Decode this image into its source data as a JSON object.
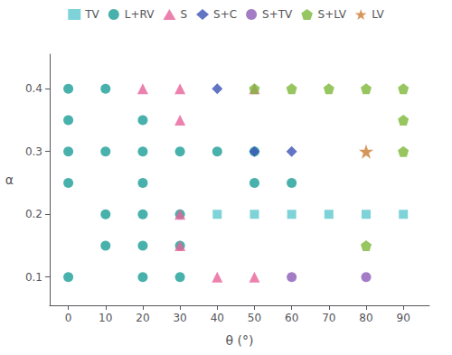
{
  "chart_data": {
    "type": "scatter",
    "xlabel": "θ (°)",
    "ylabel": "α",
    "xlim": [
      -5,
      97
    ],
    "ylim": [
      0.055,
      0.455
    ],
    "xticks": [
      0,
      10,
      20,
      30,
      40,
      50,
      60,
      70,
      80,
      90
    ],
    "yticks": [
      0.1,
      0.2,
      0.3,
      0.4
    ],
    "grid": false,
    "legend": "top",
    "series": [
      {
        "name": "TV",
        "color": "#5ec8cf",
        "marker": "square",
        "x": [
          40,
          50,
          60,
          70,
          80,
          90
        ],
        "y": [
          0.2,
          0.2,
          0.2,
          0.2,
          0.2,
          0.2
        ]
      },
      {
        "name": "L+RV",
        "color": "#1a9e96",
        "marker": "circle",
        "x": [
          0,
          0,
          0,
          0,
          0,
          10,
          10,
          10,
          10,
          20,
          20,
          20,
          20,
          20,
          20,
          30,
          30,
          30,
          30,
          40,
          50,
          50,
          60
        ],
        "y": [
          0.4,
          0.35,
          0.3,
          0.25,
          0.1,
          0.4,
          0.3,
          0.2,
          0.15,
          0.35,
          0.3,
          0.25,
          0.2,
          0.15,
          0.1,
          0.3,
          0.2,
          0.15,
          0.1,
          0.3,
          0.25,
          0.3,
          0.25
        ]
      },
      {
        "name": "S",
        "color": "#e8619a",
        "marker": "triangle",
        "x": [
          20,
          30,
          30,
          30,
          30,
          40,
          50,
          50
        ],
        "y": [
          0.4,
          0.4,
          0.35,
          0.2,
          0.15,
          0.1,
          0.4,
          0.1
        ]
      },
      {
        "name": "S+C",
        "color": "#3a52b5",
        "marker": "diamond",
        "x": [
          40,
          50,
          60
        ],
        "y": [
          0.4,
          0.3,
          0.3
        ]
      },
      {
        "name": "S+TV",
        "color": "#8b5db8",
        "marker": "circle",
        "x": [
          60,
          80
        ],
        "y": [
          0.1,
          0.1
        ]
      },
      {
        "name": "S+LV",
        "color": "#7db83a",
        "marker": "pentagon",
        "x": [
          50,
          60,
          70,
          80,
          90,
          90,
          90,
          80
        ],
        "y": [
          0.4,
          0.4,
          0.4,
          0.4,
          0.4,
          0.35,
          0.3,
          0.15
        ]
      },
      {
        "name": "LV",
        "color": "#cc7a32",
        "marker": "star",
        "x": [
          80
        ],
        "y": [
          0.3
        ]
      }
    ]
  }
}
